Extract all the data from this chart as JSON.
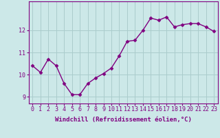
{
  "x": [
    0,
    1,
    2,
    3,
    4,
    5,
    6,
    7,
    8,
    9,
    10,
    11,
    12,
    13,
    14,
    15,
    16,
    17,
    18,
    19,
    20,
    21,
    22,
    23
  ],
  "y": [
    10.4,
    10.1,
    10.7,
    10.4,
    9.6,
    9.1,
    9.1,
    9.6,
    9.85,
    10.05,
    10.3,
    10.85,
    11.5,
    11.55,
    12.0,
    12.55,
    12.45,
    12.6,
    12.15,
    12.25,
    12.3,
    12.3,
    12.15,
    11.95
  ],
  "line_color": "#800080",
  "marker": "D",
  "marker_size": 2.5,
  "bg_color": "#cce8e8",
  "grid_color": "#aacccc",
  "xlabel": "Windchill (Refroidissement éolien,°C)",
  "ylim": [
    8.7,
    13.3
  ],
  "xlim": [
    -0.5,
    23.5
  ],
  "xticks": [
    0,
    1,
    2,
    3,
    4,
    5,
    6,
    7,
    8,
    9,
    10,
    11,
    12,
    13,
    14,
    15,
    16,
    17,
    18,
    19,
    20,
    21,
    22,
    23
  ],
  "yticks": [
    9,
    10,
    11,
    12
  ],
  "xlabel_fontsize": 6.5,
  "tick_fontsize": 6.0,
  "line_width": 1.0
}
